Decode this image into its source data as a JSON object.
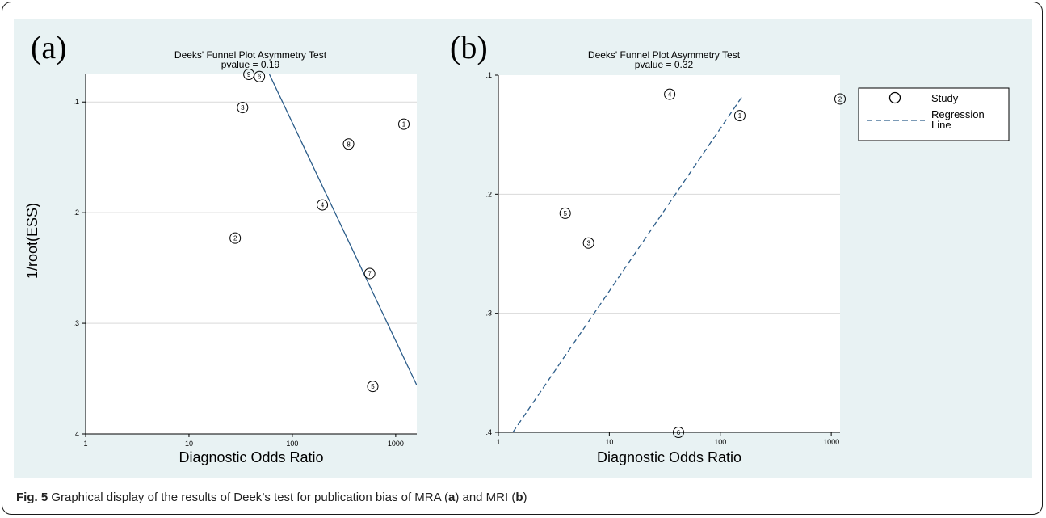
{
  "caption": {
    "label": "Fig. 5",
    "text_1": " Graphical display of the results of Deek’s test for publication bias of MRA (",
    "panel_a": "a",
    "text_2": ") and MRI (",
    "panel_b": "b",
    "text_3": ")"
  },
  "chart_data": [
    {
      "panel_label": "(a)",
      "type": "scatter",
      "title": "Deeks' Funnel Plot Asymmetry Test",
      "subtitle": "pvalue =   0.19",
      "xlabel": "Diagnostic Odds Ratio",
      "ylabel": "1/root(ESS)",
      "x_scale": "log",
      "xlim": [
        1,
        1600
      ],
      "ylim": [
        0.4,
        0.075
      ],
      "x_ticks": [
        1,
        10,
        100,
        1000
      ],
      "x_tick_labels": [
        "1",
        "10",
        "100",
        "1000"
      ],
      "y_ticks": [
        0.1,
        0.2,
        0.3,
        0.4
      ],
      "y_tick_labels": [
        ".1",
        ".2",
        ".3",
        ".4"
      ],
      "grid": "horizontal",
      "points": [
        {
          "study": "1",
          "x": 1200,
          "y": 0.12
        },
        {
          "study": "2",
          "x": 28,
          "y": 0.223
        },
        {
          "study": "3",
          "x": 33,
          "y": 0.105
        },
        {
          "study": "4",
          "x": 195,
          "y": 0.193
        },
        {
          "study": "5",
          "x": 600,
          "y": 0.357
        },
        {
          "study": "6",
          "x": 48,
          "y": 0.077
        },
        {
          "study": "7",
          "x": 560,
          "y": 0.255
        },
        {
          "study": "8",
          "x": 350,
          "y": 0.138
        },
        {
          "study": "9",
          "x": 38,
          "y": 0.075
        }
      ],
      "regression_line": {
        "x": [
          60,
          1600
        ],
        "y": [
          0.075,
          0.356
        ],
        "style": "solid"
      },
      "colors": {
        "line": "#2c5d8a",
        "marker": "#000000",
        "grid": "#d9d9d9"
      }
    },
    {
      "panel_label": "(b)",
      "type": "scatter",
      "title": "Deeks' Funnel Plot Asymmetry Test",
      "subtitle": "pvalue =   0.32",
      "xlabel": "Diagnostic Odds Ratio",
      "ylabel": "",
      "x_scale": "log",
      "xlim": [
        1,
        1200
      ],
      "ylim": [
        0.4,
        0.1
      ],
      "x_ticks": [
        1,
        10,
        100,
        1000
      ],
      "x_tick_labels": [
        "1",
        "10",
        "100",
        "1000"
      ],
      "y_ticks": [
        0.1,
        0.2,
        0.3,
        0.4
      ],
      "y_tick_labels": [
        ".1",
        ".2",
        ".3",
        ".4"
      ],
      "grid": "horizontal",
      "points": [
        {
          "study": "1",
          "x": 150,
          "y": 0.134
        },
        {
          "study": "2",
          "x": 1200,
          "y": 0.12
        },
        {
          "study": "3",
          "x": 6.5,
          "y": 0.241
        },
        {
          "study": "4",
          "x": 35,
          "y": 0.116
        },
        {
          "study": "5",
          "x": 4,
          "y": 0.216
        },
        {
          "study": "6",
          "x": 42,
          "y": 0.4
        }
      ],
      "regression_line": {
        "x": [
          1.35,
          160
        ],
        "y": [
          0.4,
          0.117
        ],
        "style": "dashed"
      },
      "legend": {
        "position": "right",
        "entries": [
          {
            "label": "Study",
            "symbol": "circle"
          },
          {
            "label": "Regression\nLine",
            "symbol": "dashed-line"
          }
        ]
      },
      "colors": {
        "line": "#2c5d8a",
        "marker": "#000000",
        "grid": "#d9d9d9"
      }
    }
  ]
}
